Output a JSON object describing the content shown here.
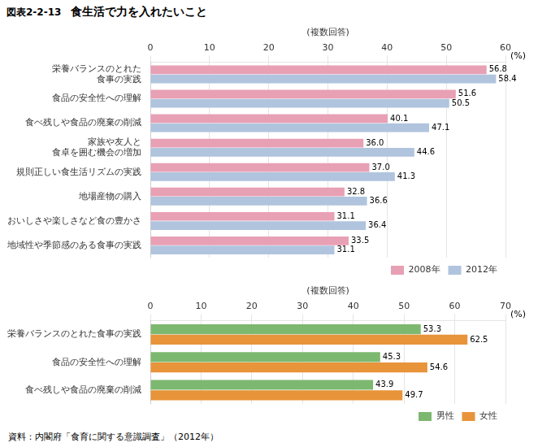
{
  "chart_data": [
    {
      "type": "bar",
      "orientation": "horizontal",
      "title": "食生活で力を入れたいこと",
      "annotations": [
        "図表2-2-13",
        "(%)"
      ],
      "xlabel": "(複数回答)",
      "categories": [
        "栄養バランスのとれた\n食事の実践",
        "食品の安全性への理解",
        "食べ残しや食品の廃棄の削減",
        "家族や友人と\n食卓を囲む機会の増加",
        "規則正しい食生活リズムの実践",
        "地場産物の購入",
        "おいしさや楽しさなど食の豊かさ",
        "地域性や季節感のある食事の実践"
      ],
      "series": [
        {
          "name": "2008年",
          "color": "#e8a0b4",
          "values": [
            56.8,
            51.6,
            40.1,
            36.0,
            37.0,
            32.8,
            31.1,
            33.5
          ],
          "value_labels": [
            "56.8",
            "51.6",
            "40.1",
            "36.0",
            "37.0",
            "32.8",
            "31.1",
            "33.5"
          ]
        },
        {
          "name": "2012年",
          "color": "#b0c4de",
          "values": [
            58.4,
            50.5,
            47.1,
            44.6,
            41.3,
            36.6,
            36.4,
            31.1
          ]
        }
      ],
      "xlim": [
        0,
        60
      ],
      "xticks": [
        0,
        10,
        20,
        30,
        40,
        50,
        60
      ],
      "grid": true,
      "legend": "lower right",
      "data_labels": true
    },
    {
      "type": "bar",
      "orientation": "horizontal",
      "annotations": [
        "(%)",
        "資料：内閣府「食育に関する意識調査」（2012年）"
      ],
      "xlabel": "(複数回答)",
      "categories": [
        "栄養バランスのとれた食事の実践",
        "食品の安全性への理解",
        "食べ残しや食品の廃棄の削減"
      ],
      "series": [
        {
          "name": "男性",
          "color": "#7db870",
          "values": [
            53.3,
            45.3,
            43.9
          ]
        },
        {
          "name": "女性",
          "color": "#e8943a",
          "values": [
            62.5,
            54.6,
            49.7
          ]
        }
      ],
      "xlim": [
        0,
        70
      ],
      "xticks": [
        0,
        10,
        20,
        30,
        40,
        50,
        60,
        70
      ],
      "grid": true,
      "legend": "lower right",
      "data_labels": true
    }
  ]
}
